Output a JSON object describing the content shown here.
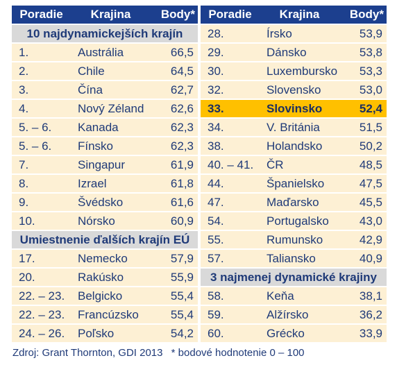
{
  "header": [
    "Poradie",
    "Krajina",
    "Body*"
  ],
  "left": {
    "groups": [
      {
        "title": "10 najdynamickejších krajín",
        "rows": [
          [
            "1.",
            "Austrália",
            "66,5"
          ],
          [
            "2.",
            "Chile",
            "64,5"
          ],
          [
            "3.",
            "Čína",
            "62,7"
          ],
          [
            "4.",
            "Nový Zéland",
            "62,6"
          ],
          [
            "5. – 6.",
            "Kanada",
            "62,3"
          ],
          [
            "5. – 6.",
            "Fínsko",
            "62,3"
          ],
          [
            "7.",
            "Singapur",
            "61,9"
          ],
          [
            "8.",
            "Izrael",
            "61,8"
          ],
          [
            "9.",
            "Švédsko",
            "61,6"
          ],
          [
            "10.",
            "Nórsko",
            "60,9"
          ]
        ]
      },
      {
        "title": "Umiestnenie ďalších krajín EÚ",
        "rows": [
          [
            "17.",
            "Nemecko",
            "57,9"
          ],
          [
            "20.",
            "Rakúsko",
            "55,9"
          ],
          [
            "22. – 23.",
            "Belgicko",
            "55,4"
          ],
          [
            "22. – 23.",
            "Francúzsko",
            "55,4"
          ],
          [
            "24. – 26.",
            "Poľsko",
            "54,2"
          ]
        ]
      }
    ]
  },
  "right": {
    "groups": [
      {
        "highlight": 4,
        "rows": [
          [
            "28.",
            "Írsko",
            "53,9"
          ],
          [
            "29.",
            "Dánsko",
            "53,8"
          ],
          [
            "30.",
            "Luxembursko",
            "53,3"
          ],
          [
            "32.",
            "Slovensko",
            "53,0"
          ],
          [
            "33.",
            "Slovinsko",
            "52,4"
          ],
          [
            "34.",
            "V. Británia",
            "51,5"
          ],
          [
            "38.",
            "Holandsko",
            "50,2"
          ],
          [
            "40. – 41.",
            "ČR",
            "48,5"
          ],
          [
            "44.",
            "Španielsko",
            "47,5"
          ],
          [
            "47.",
            "Maďarsko",
            "45,5"
          ],
          [
            "54.",
            "Portugalsko",
            "43,0"
          ],
          [
            "55.",
            "Rumunsko",
            "42,9"
          ],
          [
            "57.",
            "Taliansko",
            "40,9"
          ]
        ]
      },
      {
        "title": "3 najmenej dynamické krajiny",
        "rows": [
          [
            "58.",
            "Keňa",
            "38,1"
          ],
          [
            "59.",
            "Alžírsko",
            "36,2"
          ],
          [
            "60.",
            "Grécko",
            "33,9"
          ]
        ]
      }
    ]
  },
  "footer": {
    "source": "Zdroj: Grant Thornton, GDI 2013",
    "note": "* bodové hodnotenie 0 – 100"
  }
}
